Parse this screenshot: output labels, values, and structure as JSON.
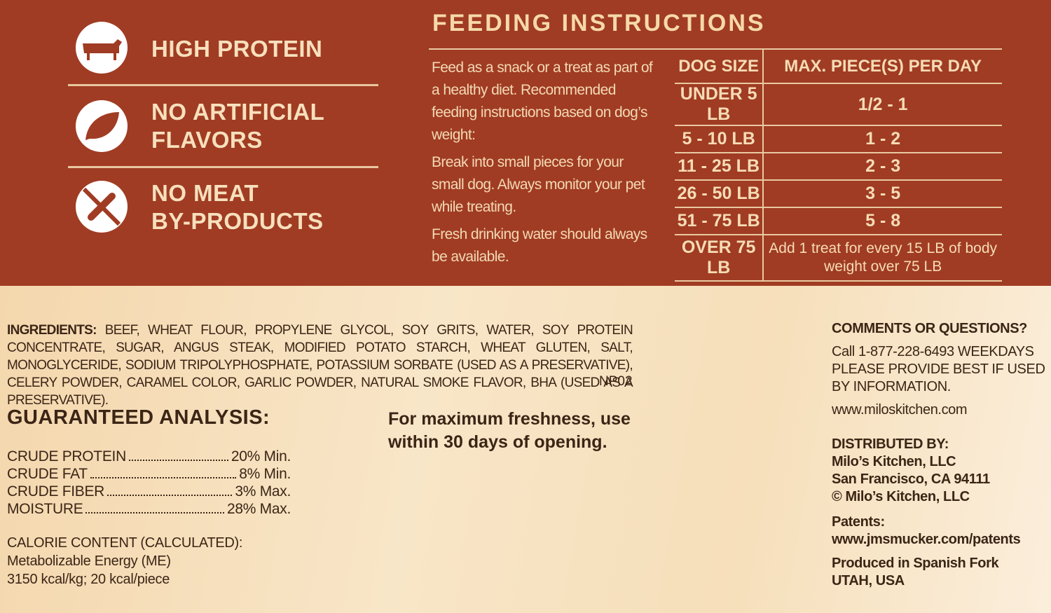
{
  "badges": [
    {
      "lines": [
        "HIGH PROTEIN"
      ]
    },
    {
      "lines": [
        "NO ARTIFICIAL",
        "FLAVORS"
      ]
    },
    {
      "lines": [
        "NO MEAT",
        "BY-PRODUCTS"
      ]
    }
  ],
  "feeding": {
    "title": "FEEDING INSTRUCTIONS",
    "paragraphs": [
      "Feed as a snack or a treat as part of a healthy diet. Recommended feeding instructions based on dog’s weight:",
      "Break into small pieces for your small dog. Always monitor your pet while treating.",
      "Fresh drinking water should always be available."
    ],
    "table": {
      "headers": [
        "DOG SIZE",
        "MAX. PIECE(S) PER DAY"
      ],
      "rows": [
        [
          "UNDER 5 LB",
          "1/2 - 1"
        ],
        [
          "5 - 10 LB",
          "1 - 2"
        ],
        [
          "11 - 25 LB",
          "2 - 3"
        ],
        [
          "26 - 50 LB",
          "3 - 5"
        ],
        [
          "51 - 75 LB",
          "5 - 8"
        ],
        [
          "OVER 75 LB",
          "Add 1 treat for every 15 LB of body weight over 75 LB"
        ]
      ]
    }
  },
  "ingredients": {
    "label": "INGREDIENTS:",
    "text": "BEEF, WHEAT FLOUR, PROPYLENE GLYCOL, SOY GRITS, WATER, SOY PROTEIN CONCENTRATE, SUGAR, ANGUS STEAK, MODIFIED POTATO STARCH, WHEAT GLUTEN, SALT, MONOGLYCERIDE, SODIUM TRIPOLYPHOSPHATE, POTASSIUM SORBATE (USED AS A PRESERVATIVE), CELERY POWDER, CARAMEL COLOR, GARLIC POWDER, NATURAL SMOKE FLAVOR, BHA (USED AS A PRESERVATIVE).",
    "code": "NP02"
  },
  "analysis": {
    "title": "GUARANTEED ANALYSIS:",
    "rows": [
      [
        "CRUDE PROTEIN",
        "20% Min."
      ],
      [
        "CRUDE FAT",
        "8% Min."
      ],
      [
        "CRUDE FIBER",
        "3% Max."
      ],
      [
        "MOISTURE",
        "28% Max."
      ]
    ],
    "calorie_title": "CALORIE CONTENT (CALCULATED):",
    "calorie_lines": [
      "Metabolizable Energy (ME)",
      "3150 kcal/kg; 20 kcal/piece"
    ]
  },
  "freshness": "For maximum freshness, use within 30 days of opening.",
  "contact": {
    "heading": "COMMENTS OR QUESTIONS?",
    "text": "Call 1-877-228-6493 WEEKDAYS PLEASE PROVIDE BEST IF USED BY INFORMATION.",
    "url": "www.miloskitchen.com",
    "distributed_heading": "DISTRIBUTED BY:",
    "distributed_lines": [
      "Milo’s Kitchen, LLC",
      "San Francisco, CA 94111",
      "© Milo’s Kitchen, LLC"
    ],
    "patents_heading": "Patents:",
    "patents_url": "www.jmsmucker.com/patents",
    "produced_lines": [
      "Produced in Spanish Fork",
      "UTAH, USA"
    ]
  }
}
